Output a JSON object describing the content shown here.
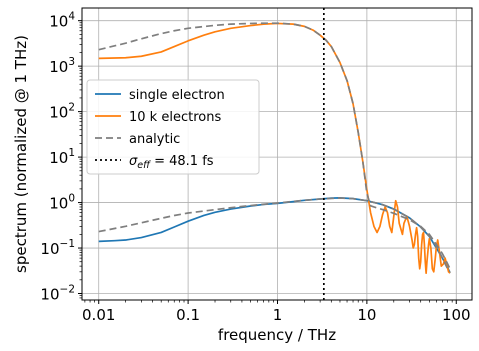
{
  "chart_data": {
    "type": "line",
    "xscale": "log",
    "yscale": "log",
    "xlim": [
      0.0065,
      150
    ],
    "ylim": [
      0.0072,
      19000
    ],
    "xlabel": "frequency / THz",
    "ylabel": "spectrum (normalized @ 1 THz)",
    "grid": true,
    "legend_position": "center-left",
    "x_ticks": [
      {
        "value": 0.01,
        "label": "0.01"
      },
      {
        "value": 0.1,
        "label": "0.1"
      },
      {
        "value": 1,
        "label": "1"
      },
      {
        "value": 10,
        "label": "10"
      },
      {
        "value": 100,
        "label": "100"
      }
    ],
    "y_ticks": [
      {
        "value": 0.01,
        "base": "10",
        "exp": "−2"
      },
      {
        "value": 0.1,
        "base": "10",
        "exp": "−1"
      },
      {
        "value": 1,
        "base": "10",
        "exp": "0"
      },
      {
        "value": 10,
        "base": "10",
        "exp": "1"
      },
      {
        "value": 100,
        "base": "10",
        "exp": "2"
      },
      {
        "value": 1000,
        "base": "10",
        "exp": "3"
      },
      {
        "value": 10000,
        "base": "10",
        "exp": "4"
      }
    ],
    "vline": {
      "x": 3.3,
      "color": "#000000",
      "style": "dotted"
    },
    "series": [
      {
        "name": "single electron",
        "color": "#1f77b4",
        "style": "solid",
        "points": [
          [
            0.01,
            0.14
          ],
          [
            0.015,
            0.145
          ],
          [
            0.02,
            0.15
          ],
          [
            0.03,
            0.17
          ],
          [
            0.05,
            0.22
          ],
          [
            0.07,
            0.29
          ],
          [
            0.1,
            0.39
          ],
          [
            0.15,
            0.52
          ],
          [
            0.2,
            0.61
          ],
          [
            0.3,
            0.72
          ],
          [
            0.5,
            0.84
          ],
          [
            0.7,
            0.91
          ],
          [
            1,
            0.96
          ],
          [
            1.5,
            1.05
          ],
          [
            2,
            1.12
          ],
          [
            3,
            1.2
          ],
          [
            4,
            1.25
          ],
          [
            5,
            1.27
          ],
          [
            7,
            1.22
          ],
          [
            10,
            1.1
          ],
          [
            15,
            0.9
          ],
          [
            20,
            0.72
          ],
          [
            30,
            0.46
          ],
          [
            40,
            0.29
          ],
          [
            50,
            0.18
          ],
          [
            60,
            0.1
          ],
          [
            70,
            0.06
          ],
          [
            80,
            0.038
          ],
          [
            85,
            0.028
          ]
        ]
      },
      {
        "name": "10 k electrons",
        "color": "#ff7f0e",
        "style": "solid",
        "points": [
          [
            0.01,
            1480
          ],
          [
            0.02,
            1530
          ],
          [
            0.03,
            1650
          ],
          [
            0.05,
            2050
          ],
          [
            0.07,
            2700
          ],
          [
            0.1,
            3600
          ],
          [
            0.15,
            4800
          ],
          [
            0.2,
            5700
          ],
          [
            0.3,
            6800
          ],
          [
            0.5,
            7800
          ],
          [
            0.7,
            8400
          ],
          [
            1,
            8700
          ],
          [
            1.5,
            8400
          ],
          [
            2,
            7500
          ],
          [
            2.5,
            6200
          ],
          [
            3,
            4800
          ],
          [
            3.5,
            3700
          ],
          [
            4,
            2700
          ],
          [
            5,
            1200
          ],
          [
            6,
            480
          ],
          [
            7,
            150
          ],
          [
            8,
            35
          ],
          [
            9,
            8
          ],
          [
            10,
            1.9
          ],
          [
            11,
            0.6
          ],
          [
            12,
            0.3
          ],
          [
            13,
            0.22
          ],
          [
            14,
            0.3
          ],
          [
            15,
            0.55
          ],
          [
            16,
            0.8
          ],
          [
            17,
            0.6
          ],
          [
            18,
            0.3
          ],
          [
            19,
            0.22
          ],
          [
            20,
            0.5
          ],
          [
            21,
            1.1
          ],
          [
            22,
            0.8
          ],
          [
            23,
            0.35
          ],
          [
            25,
            0.2
          ],
          [
            26,
            0.35
          ],
          [
            28,
            0.5
          ],
          [
            30,
            0.3
          ],
          [
            32,
            0.15
          ],
          [
            33,
            0.1
          ],
          [
            34,
            0.12
          ],
          [
            35,
            0.2
          ],
          [
            36,
            0.28
          ],
          [
            37,
            0.18
          ],
          [
            38,
            0.06
          ],
          [
            39,
            0.035
          ],
          [
            40,
            0.05
          ],
          [
            41,
            0.12
          ],
          [
            42,
            0.2
          ],
          [
            43,
            0.22
          ],
          [
            44,
            0.12
          ],
          [
            45,
            0.05
          ],
          [
            46,
            0.028
          ],
          [
            47,
            0.05
          ],
          [
            49,
            0.12
          ],
          [
            50,
            0.16
          ],
          [
            52,
            0.1
          ],
          [
            54,
            0.035
          ],
          [
            56,
            0.03
          ],
          [
            58,
            0.055
          ],
          [
            60,
            0.11
          ],
          [
            62,
            0.15
          ],
          [
            65,
            0.08
          ],
          [
            68,
            0.04
          ],
          [
            72,
            0.045
          ],
          [
            75,
            0.06
          ],
          [
            78,
            0.045
          ],
          [
            82,
            0.03
          ],
          [
            85,
            0.028
          ]
        ]
      },
      {
        "name": "analytic",
        "color": "#7f7f7f",
        "style": "dashed",
        "groups": [
          [
            [
              0.01,
              2300
            ],
            [
              0.02,
              3200
            ],
            [
              0.03,
              4000
            ],
            [
              0.05,
              5200
            ],
            [
              0.07,
              6000
            ],
            [
              0.1,
              6800
            ],
            [
              0.2,
              7900
            ],
            [
              0.3,
              8400
            ],
            [
              0.5,
              8700
            ],
            [
              0.7,
              8800
            ],
            [
              1,
              8800
            ],
            [
              1.5,
              8400
            ],
            [
              2,
              7500
            ],
            [
              2.5,
              6200
            ],
            [
              3,
              4800
            ],
            [
              3.5,
              3700
            ],
            [
              4,
              2700
            ],
            [
              5,
              1200
            ],
            [
              6,
              480
            ],
            [
              7,
              150
            ],
            [
              8,
              35
            ],
            [
              9,
              8
            ],
            [
              10,
              1.6
            ],
            [
              11,
              0.85
            ],
            [
              12,
              0.8
            ],
            [
              15,
              0.7
            ],
            [
              20,
              0.58
            ],
            [
              30,
              0.42
            ],
            [
              40,
              0.3
            ],
            [
              50,
              0.2
            ],
            [
              60,
              0.12
            ],
            [
              70,
              0.075
            ],
            [
              80,
              0.045
            ],
            [
              85,
              0.035
            ]
          ],
          [
            [
              0.01,
              0.23
            ],
            [
              0.02,
              0.3
            ],
            [
              0.03,
              0.36
            ],
            [
              0.05,
              0.45
            ],
            [
              0.07,
              0.52
            ],
            [
              0.1,
              0.59
            ],
            [
              0.2,
              0.7
            ],
            [
              0.3,
              0.77
            ],
            [
              0.5,
              0.86
            ],
            [
              1,
              0.98
            ],
            [
              2,
              1.12
            ],
            [
              3,
              1.2
            ],
            [
              5,
              1.26
            ],
            [
              7,
              1.22
            ],
            [
              10,
              1.1
            ],
            [
              15,
              0.9
            ],
            [
              20,
              0.72
            ],
            [
              30,
              0.46
            ],
            [
              40,
              0.29
            ],
            [
              50,
              0.18
            ],
            [
              60,
              0.11
            ],
            [
              70,
              0.06
            ],
            [
              80,
              0.035
            ],
            [
              85,
              0.03
            ]
          ]
        ]
      },
      {
        "name": "σeff = 48.1 fs",
        "color": "#000000",
        "style": "dotted"
      }
    ],
    "legend": [
      {
        "label": "single electron",
        "color": "#1f77b4",
        "style": "solid"
      },
      {
        "label": "10 k electrons",
        "color": "#ff7f0e",
        "style": "solid"
      },
      {
        "label": "analytic",
        "color": "#7f7f7f",
        "style": "dashed"
      },
      {
        "label_sym": "σ",
        "label_sub": "eff",
        "label_rest": " = 48.1 fs",
        "color": "#000000",
        "style": "dotted"
      }
    ]
  }
}
